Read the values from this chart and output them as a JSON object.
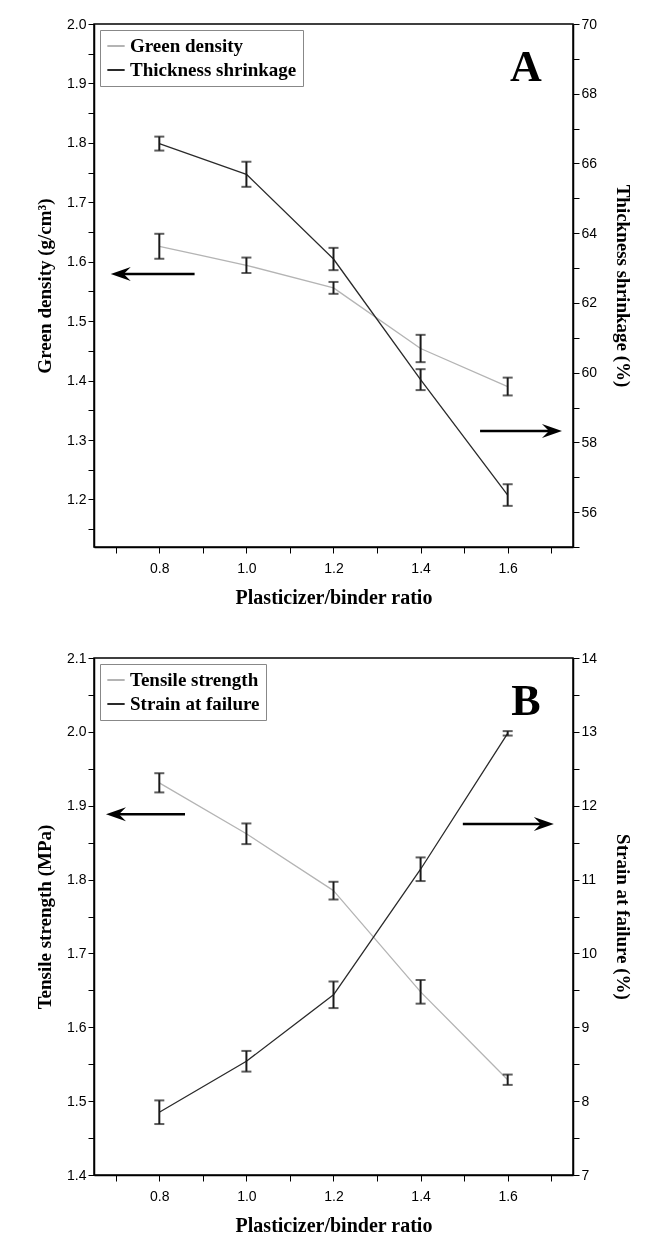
{
  "chart_data": [
    {
      "type": "line",
      "xlabel": "Plasticizer/binder ratio",
      "ylabel": "Green density (g/cm³)",
      "y2label": "Thickness shrinkage (%)",
      "annotations": [
        "A"
      ],
      "legend": "top left",
      "x": [
        0.8,
        1.0,
        1.2,
        1.4,
        1.6
      ],
      "series": [
        {
          "name": "Green density",
          "color": "#b4b4b4",
          "values": [
            1.626,
            1.594,
            1.556,
            1.454,
            1.39
          ],
          "errors": [
            0.021,
            0.013,
            0.01,
            0.023,
            0.015
          ]
        },
        {
          "name": "Thickness shrinkage",
          "color": "#2a2a2a",
          "axis": "y2",
          "values": [
            66.57,
            65.69,
            63.26,
            59.8,
            56.49
          ],
          "errors": [
            0.2,
            0.36,
            0.32,
            0.3,
            0.31
          ]
        }
      ],
      "xlim": [
        0.65,
        1.75
      ],
      "ylim": [
        1.12,
        2.0
      ],
      "y2lim": [
        55,
        70
      ],
      "xticks": [
        {
          "value": 0.7,
          "label": null
        },
        {
          "value": 0.8,
          "label": "0.8"
        },
        {
          "value": 0.9,
          "label": null
        },
        {
          "value": 1,
          "label": "1.0"
        },
        {
          "value": 1.1,
          "label": null
        },
        {
          "value": 1.2,
          "label": "1.2"
        },
        {
          "value": 1.3,
          "label": null
        },
        {
          "value": 1.4,
          "label": "1.4"
        },
        {
          "value": 1.5,
          "label": null
        },
        {
          "value": 1.6,
          "label": "1.6"
        },
        {
          "value": 1.7,
          "label": null
        }
      ],
      "yticks": [
        {
          "value": 1.15,
          "label": null
        },
        1.2,
        {
          "value": 1.25,
          "label": null
        },
        1.3,
        {
          "value": 1.35,
          "label": null
        },
        1.4,
        {
          "value": 1.45,
          "label": null
        },
        1.5,
        {
          "value": 1.55,
          "label": null
        },
        1.6,
        {
          "value": 1.65,
          "label": null
        },
        1.7,
        {
          "value": 1.75,
          "label": null
        },
        1.8,
        {
          "value": 1.85,
          "label": null
        },
        1.9,
        {
          "value": 1.95,
          "label": null
        },
        {
          "value": 2,
          "label": "2.0"
        }
      ],
      "y2ticks": [
        {
          "value": 55,
          "label": null
        },
        56,
        {
          "value": 57,
          "label": null
        },
        58,
        {
          "value": 59,
          "label": null
        },
        60,
        {
          "value": 61,
          "label": null
        },
        62,
        {
          "value": 63,
          "label": null
        },
        64,
        {
          "value": 65,
          "label": null
        },
        66,
        {
          "value": 67,
          "label": null
        },
        68,
        {
          "value": 69,
          "label": null
        },
        70
      ]
    },
    {
      "type": "line",
      "xlabel": "Plasticizer/binder ratio",
      "ylabel": "Tensile strength (MPa)",
      "y2label": "Strain at failure (%)",
      "annotations": [
        "B"
      ],
      "legend": "top left",
      "x": [
        0.8,
        1.0,
        1.2,
        1.4,
        1.6
      ],
      "series": [
        {
          "name": "Tensile strength",
          "color": "#b4b4b4",
          "values": [
            1.931,
            1.862,
            1.785,
            1.648,
            1.529
          ],
          "errors": [
            0.013,
            0.014,
            0.012,
            0.016,
            0.007
          ]
        },
        {
          "name": "Strain at failure",
          "color": "#2a2a2a",
          "axis": "y2",
          "values": [
            7.85,
            8.54,
            9.44,
            11.14,
            12.98
          ],
          "errors": [
            0.16,
            0.14,
            0.18,
            0.16,
            0.03
          ]
        }
      ],
      "xlim": [
        0.65,
        1.75
      ],
      "ylim": [
        1.4,
        2.1
      ],
      "y2lim": [
        7,
        14
      ],
      "xticks": [
        {
          "value": 0.7,
          "label": null
        },
        {
          "value": 0.8,
          "label": "0.8"
        },
        {
          "value": 0.9,
          "label": null
        },
        {
          "value": 1,
          "label": "1.0"
        },
        {
          "value": 1.1,
          "label": null
        },
        {
          "value": 1.2,
          "label": "1.2"
        },
        {
          "value": 1.3,
          "label": null
        },
        {
          "value": 1.4,
          "label": "1.4"
        },
        {
          "value": 1.5,
          "label": null
        },
        {
          "value": 1.6,
          "label": "1.6"
        },
        {
          "value": 1.7,
          "label": null
        }
      ],
      "yticks": [
        1.4,
        {
          "value": 1.45,
          "label": null
        },
        1.5,
        {
          "value": 1.55,
          "label": null
        },
        1.6,
        {
          "value": 1.65,
          "label": null
        },
        1.7,
        {
          "value": 1.75,
          "label": null
        },
        1.8,
        {
          "value": 1.85,
          "label": null
        },
        1.9,
        {
          "value": 1.95,
          "label": null
        },
        {
          "value": 2,
          "label": "2.0"
        },
        {
          "value": 2.05,
          "label": null
        },
        2.1
      ],
      "y2ticks": [
        7,
        {
          "value": 7.5,
          "label": null
        },
        8,
        {
          "value": 8.5,
          "label": null
        },
        9,
        {
          "value": 9.5,
          "label": null
        },
        10,
        {
          "value": 10.5,
          "label": null
        },
        11,
        {
          "value": 11.5,
          "label": null
        },
        12,
        {
          "value": 12.5,
          "label": null
        },
        13,
        {
          "value": 13.5,
          "label": null
        },
        14
      ]
    }
  ]
}
